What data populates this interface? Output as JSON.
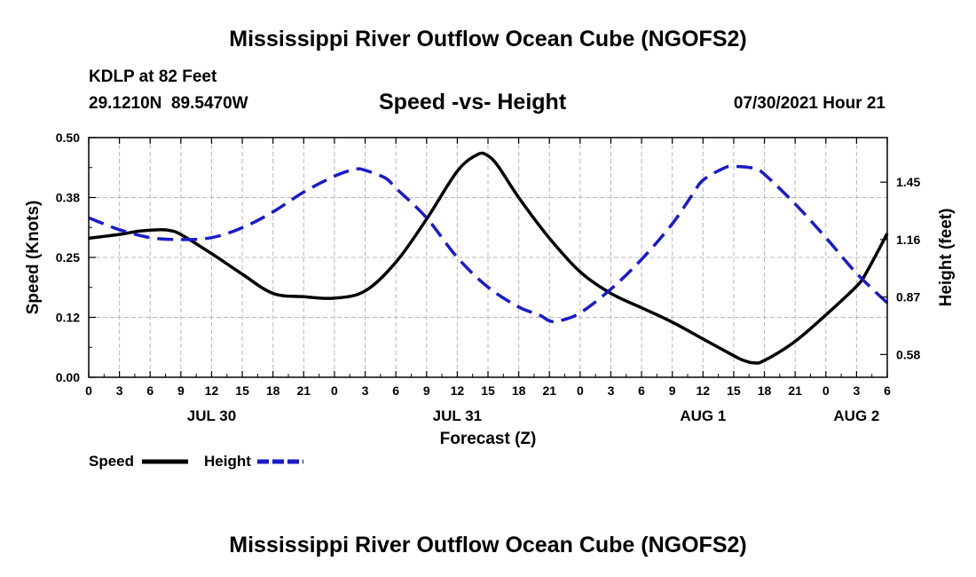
{
  "header": {
    "title": "Mississippi River Outflow Ocean Cube (NGOFS2)",
    "station": "KDLP at 82 Feet",
    "coords": "29.1210N  89.5470W",
    "subtitle": "Speed -vs- Height",
    "datetime": "07/30/2021 Hour 21"
  },
  "footer": {
    "title": "Mississippi River Outflow Ocean Cube (NGOFS2)"
  },
  "chart_data": {
    "type": "line",
    "x_unit": "forecast hours from JUL 30 00Z",
    "xlim": [
      0,
      78
    ],
    "x_ticks": [
      0,
      3,
      6,
      9,
      12,
      15,
      18,
      21,
      24,
      27,
      30,
      33,
      36,
      39,
      42,
      45,
      48,
      51,
      54,
      57,
      60,
      63,
      66,
      69,
      72,
      75,
      78
    ],
    "x_tick_labels": [
      "0",
      "3",
      "6",
      "9",
      "12",
      "15",
      "18",
      "21",
      "0",
      "3",
      "6",
      "9",
      "12",
      "15",
      "18",
      "21",
      "0",
      "3",
      "6",
      "9",
      "12",
      "15",
      "18",
      "21",
      "0",
      "3",
      "6"
    ],
    "date_labels": [
      {
        "x": 12,
        "label": "JUL 30"
      },
      {
        "x": 36,
        "label": "JUL 31"
      },
      {
        "x": 60,
        "label": "AUG 1"
      },
      {
        "x": 75,
        "label": "AUG 2"
      }
    ],
    "xlabel": "Forecast (Z)",
    "left_axis": {
      "label": "Speed (Knots)",
      "ylim": [
        0,
        0.5
      ],
      "ticks": [
        0,
        0.125,
        0.25,
        0.375,
        0.5
      ],
      "tick_labels": [
        "0.00",
        "0.12",
        "0.25",
        "0.38",
        "0.50"
      ]
    },
    "right_axis": {
      "label": "Height (feet)",
      "ylim": [
        0.465,
        1.675
      ],
      "ticks": [
        0.58,
        0.87,
        1.16,
        1.45
      ],
      "tick_labels": [
        "0.58",
        "0.87",
        "1.16",
        "1.45"
      ]
    },
    "grid": true,
    "series": [
      {
        "name": "Speed",
        "axis": "left",
        "color": "#000000",
        "style": "solid",
        "x": [
          0,
          3,
          5,
          7,
          8,
          9,
          12,
          15,
          18,
          21,
          24,
          27,
          30,
          33,
          36,
          38,
          39,
          40,
          42,
          45,
          48,
          51,
          54,
          57,
          60,
          63,
          64,
          65,
          66,
          69,
          72,
          75,
          76,
          78
        ],
        "y": [
          0.29,
          0.298,
          0.305,
          0.308,
          0.306,
          0.298,
          0.258,
          0.215,
          0.175,
          0.168,
          0.165,
          0.18,
          0.24,
          0.33,
          0.43,
          0.465,
          0.462,
          0.44,
          0.375,
          0.29,
          0.22,
          0.175,
          0.145,
          0.115,
          0.08,
          0.045,
          0.035,
          0.03,
          0.035,
          0.075,
          0.13,
          0.19,
          0.22,
          0.3
        ]
      },
      {
        "name": "Height",
        "axis": "right",
        "color": "#1a1acc",
        "style": "dashed",
        "x": [
          0,
          3,
          6,
          9,
          12,
          15,
          18,
          21,
          24,
          26,
          27,
          29,
          30,
          33,
          36,
          39,
          42,
          44,
          45,
          46,
          48,
          51,
          54,
          57,
          59,
          60,
          62,
          63,
          65,
          66,
          69,
          72,
          75,
          78
        ],
        "y": [
          1.27,
          1.21,
          1.17,
          1.16,
          1.17,
          1.22,
          1.3,
          1.4,
          1.48,
          1.515,
          1.51,
          1.47,
          1.42,
          1.27,
          1.07,
          0.92,
          0.82,
          0.78,
          0.75,
          0.75,
          0.79,
          0.91,
          1.06,
          1.24,
          1.39,
          1.46,
          1.52,
          1.53,
          1.52,
          1.49,
          1.34,
          1.17,
          0.99,
          0.84
        ]
      }
    ],
    "legend": [
      {
        "label": "Speed",
        "color": "#000000",
        "style": "solid"
      },
      {
        "label": "Height",
        "color": "#1a1acc",
        "style": "dashed"
      }
    ]
  }
}
